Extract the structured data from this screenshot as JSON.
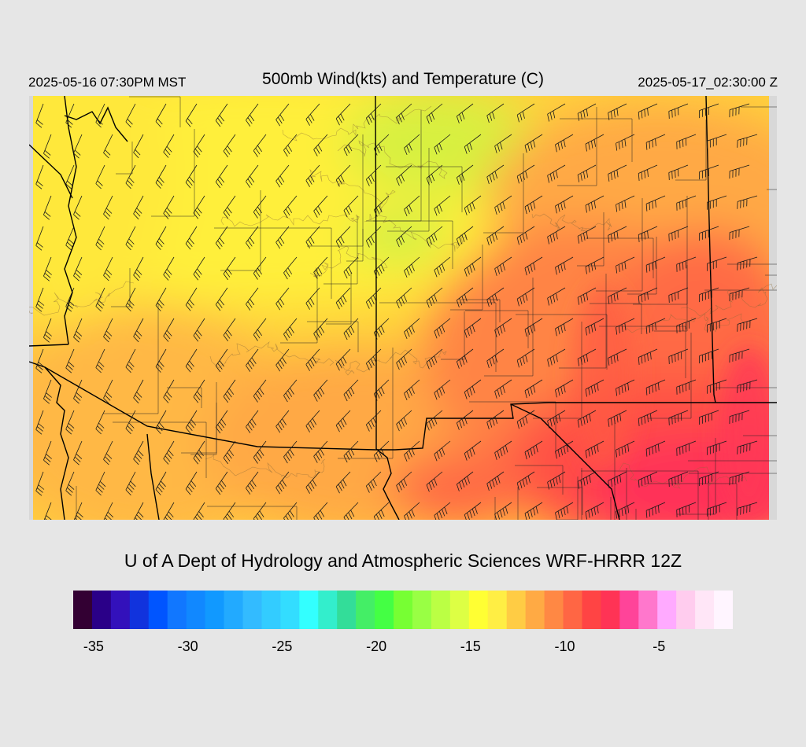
{
  "header": {
    "local_time": "2025-05-16 07:30PM MST",
    "title": "500mb Wind(kts) and Temperature (C)",
    "utc_time": "2025-05-17_02:30:00 Z"
  },
  "credit": "U of A Dept of Hydrology and Atmospheric Sciences WRF-HRRR 12Z",
  "colorbar": {
    "min": -36,
    "max": -1,
    "step": 1,
    "colors": [
      "#330033",
      "#2a0088",
      "#3311bb",
      "#1133dd",
      "#0055ff",
      "#1177ff",
      "#1188ff",
      "#1199ff",
      "#22aaff",
      "#33bbff",
      "#33ccff",
      "#33ddff",
      "#33ffff",
      "#33eecc",
      "#33dd99",
      "#44ee66",
      "#44ff44",
      "#77ff33",
      "#99ff44",
      "#bbff44",
      "#ddff44",
      "#ffff33",
      "#ffee44",
      "#ffcc44",
      "#ffaa44",
      "#ff8844",
      "#ff6644",
      "#ff4444",
      "#ff3355",
      "#ff4499",
      "#ff77cc",
      "#ffaaff",
      "#ffccee",
      "#ffe6f7",
      "#fff5ff"
    ],
    "tick_values": [
      -35,
      -30,
      -25,
      -20,
      -15,
      -10,
      -5
    ],
    "tick_labels": [
      "-35",
      "-30",
      "-25",
      "-20",
      "-15",
      "-10",
      "-5"
    ]
  },
  "map": {
    "field": "temperature",
    "units": "C",
    "wind_units": "kts",
    "fill_colors": {
      "yellow": "#ffef3a",
      "light_orange": "#ffd23c",
      "orange": "#ffa944",
      "dark_orange": "#ff8444",
      "red": "#ff5045",
      "crimson": "#ff3058",
      "green_tint": "#ccf044"
    },
    "boundary_color": "#000000"
  }
}
